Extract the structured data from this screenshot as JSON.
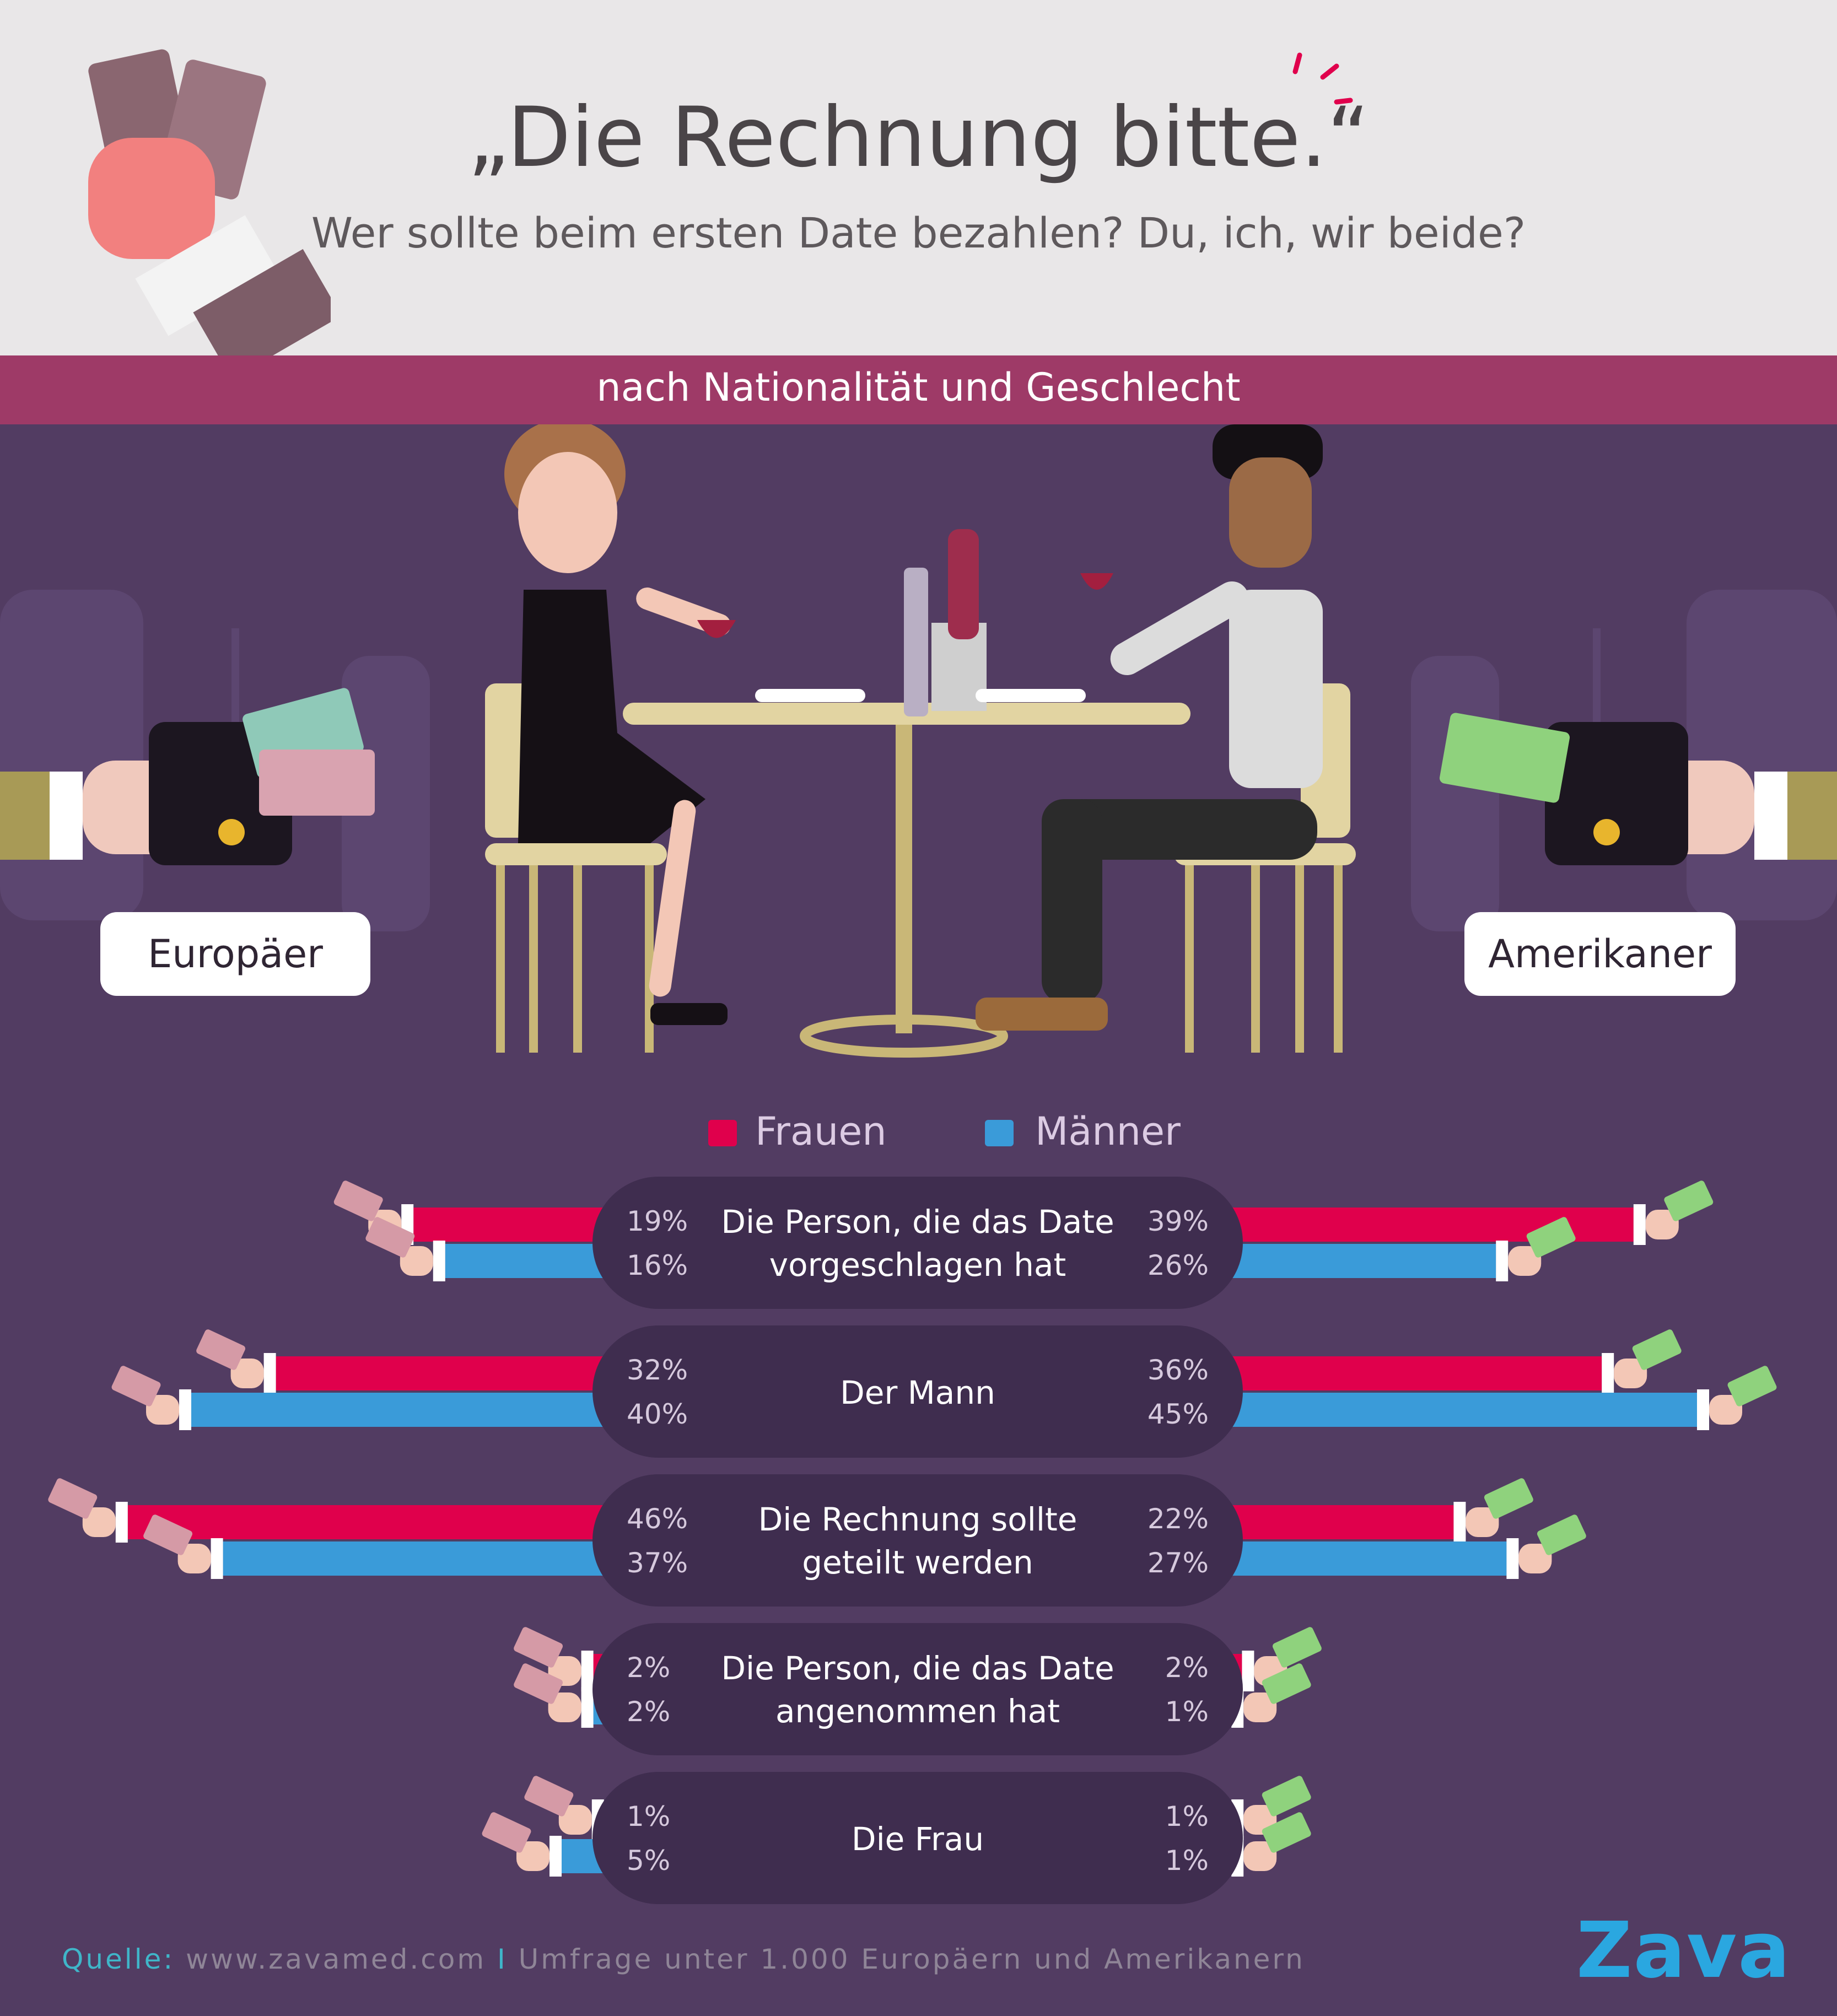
{
  "header": {
    "title": "„Die Rechnung bitte.“",
    "subtitle": "Wer sollte beim ersten Date bezahlen? Du, ich, wir beide?"
  },
  "band": {
    "label": "nach Nationalität und Geschlecht"
  },
  "regions": {
    "left": "Europäer",
    "right": "Amerikaner"
  },
  "legend": {
    "women": {
      "label": "Frauen",
      "color": "#e0004c"
    },
    "men": {
      "label": "Männer",
      "color": "#3a9bd9"
    }
  },
  "colors": {
    "background": "#523c62",
    "header": "#e9e7e8",
    "band": "#9e3a67",
    "pill": "#3f2d4f",
    "women": "#e0004c",
    "men": "#3a9bd9"
  },
  "chart_data": {
    "type": "bar",
    "unit": "%",
    "categories": [
      "Die Person, die das Date vorgeschlagen hat",
      "Der Mann",
      "Die Rechnung sollte geteilt werden",
      "Die Person, die das Date angenommen hat",
      "Die Frau"
    ],
    "category_lines": [
      [
        "Die Person, die das Date",
        "vorgeschlagen hat"
      ],
      [
        "Der Mann"
      ],
      [
        "Die Rechnung sollte",
        "geteilt werden"
      ],
      [
        "Die Person, die das Date",
        "angenommen hat"
      ],
      [
        "Die Frau"
      ]
    ],
    "groups": [
      {
        "name": "Europäer",
        "series": [
          {
            "name": "Frauen",
            "values": [
              19,
              32,
              46,
              2,
              1
            ]
          },
          {
            "name": "Männer",
            "values": [
              16,
              40,
              37,
              2,
              5
            ]
          }
        ]
      },
      {
        "name": "Amerikaner",
        "series": [
          {
            "name": "Frauen",
            "values": [
              39,
              36,
              22,
              2,
              1
            ]
          },
          {
            "name": "Männer",
            "values": [
              26,
              45,
              27,
              1,
              1
            ]
          }
        ]
      }
    ]
  },
  "footer": {
    "source_label": "Quelle:",
    "source_url": "www.zavamed.com",
    "separator": "I",
    "source_note": "Umfrage unter 1.000 Europäern und Amerikanern",
    "brand": "Zava"
  }
}
